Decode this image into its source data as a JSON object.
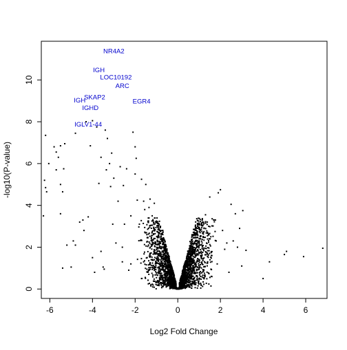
{
  "chart_data": {
    "type": "scatter",
    "title": "",
    "xlabel": "Log2 Fold Change",
    "ylabel": "-log10(P-value)",
    "xlim": [
      -6.4,
      7.0
    ],
    "ylim": [
      -0.45,
      11.85
    ],
    "xticks": [
      -6,
      -4,
      -2,
      0,
      2,
      4,
      6
    ],
    "yticks": [
      0,
      2,
      4,
      6,
      8,
      10
    ],
    "grid": false,
    "legend": "none",
    "point_color": "#000000",
    "label_color": "#0000CD",
    "series": [
      {
        "values": [
          [
            -6.2,
            7.35
          ],
          [
            -6.25,
            5.2
          ],
          [
            -6.2,
            4.85
          ],
          [
            -6.15,
            4.65
          ],
          [
            -6.3,
            3.5
          ],
          [
            -6.05,
            6.0
          ],
          [
            -5.8,
            6.8
          ],
          [
            -5.7,
            6.55
          ],
          [
            -5.6,
            6.3
          ],
          [
            -5.7,
            5.7
          ],
          [
            -5.5,
            6.85
          ],
          [
            -5.35,
            5.75
          ],
          [
            -5.5,
            5.0
          ],
          [
            -5.5,
            3.6
          ],
          [
            -5.4,
            4.65
          ],
          [
            -5.3,
            6.95
          ],
          [
            -5.4,
            1.0
          ],
          [
            -5.2,
            2.1
          ],
          [
            -5.0,
            1.05
          ],
          [
            -4.9,
            2.3
          ],
          [
            -4.8,
            7.45
          ],
          [
            -4.8,
            2.1
          ],
          [
            -4.6,
            3.2
          ],
          [
            -4.45,
            3.3
          ],
          [
            -4.4,
            2.8
          ],
          [
            -4.3,
            8.0
          ],
          [
            -4.2,
            3.45
          ],
          [
            -4.1,
            6.85
          ],
          [
            -4.0,
            8.05
          ],
          [
            -4.0,
            1.5
          ],
          [
            -3.8,
            7.75
          ],
          [
            -3.7,
            5.05
          ],
          [
            -3.6,
            6.3
          ],
          [
            -3.5,
            1.05
          ],
          [
            -3.45,
            0.95
          ],
          [
            -3.4,
            7.6
          ],
          [
            -3.35,
            5.7
          ],
          [
            -3.3,
            7.2
          ],
          [
            -3.2,
            6.0
          ],
          [
            -3.15,
            4.9
          ],
          [
            -3.1,
            6.5
          ],
          [
            -3.0,
            5.3
          ],
          [
            -3.05,
            3.1
          ],
          [
            -2.8,
            4.2
          ],
          [
            -2.7,
            5.85
          ],
          [
            -2.6,
            1.3
          ],
          [
            -2.55,
            4.95
          ],
          [
            -2.5,
            3.1
          ],
          [
            -2.4,
            5.75
          ],
          [
            -2.3,
            0.9
          ],
          [
            -2.2,
            3.5
          ],
          [
            -2.1,
            7.5
          ],
          [
            -2.0,
            6.8
          ],
          [
            -2.0,
            5.5
          ],
          [
            -1.95,
            6.25
          ],
          [
            -1.9,
            4.25
          ],
          [
            -1.8,
            3.1
          ],
          [
            -1.7,
            5.25
          ],
          [
            -1.6,
            4.2
          ],
          [
            -1.55,
            3.8
          ],
          [
            -1.5,
            5.0
          ],
          [
            -1.45,
            2.6
          ],
          [
            -1.35,
            3.9
          ],
          [
            -1.3,
            4.3
          ],
          [
            -1.2,
            3.5
          ],
          [
            -1.1,
            4.1
          ],
          [
            -1.0,
            3.25
          ],
          [
            -0.9,
            3.0
          ],
          [
            -0.7,
            2.8
          ],
          [
            -3.9,
            0.8
          ],
          [
            -3.6,
            1.8
          ],
          [
            -2.9,
            2.2
          ],
          [
            -2.6,
            2.0
          ],
          [
            -2.2,
            1.2
          ],
          [
            -1.7,
            0.5
          ],
          [
            -1.4,
            0.8
          ],
          [
            -1.2,
            2.1
          ],
          [
            -1.1,
            1.4
          ],
          [
            -0.95,
            2.3
          ],
          [
            -0.85,
            1.7
          ],
          [
            -0.75,
            1.1
          ],
          [
            -0.6,
            1.9
          ],
          [
            -0.5,
            1.3
          ],
          [
            -0.45,
            0.9
          ],
          [
            -0.35,
            0.6
          ],
          [
            -0.3,
            0.4
          ],
          [
            -0.2,
            0.25
          ],
          [
            -0.1,
            0.12
          ],
          [
            0.1,
            0.12
          ],
          [
            0.2,
            0.3
          ],
          [
            0.35,
            0.55
          ],
          [
            0.45,
            0.9
          ],
          [
            0.55,
            1.3
          ],
          [
            0.6,
            1.7
          ],
          [
            0.7,
            2.2
          ],
          [
            0.75,
            2.6
          ],
          [
            0.85,
            1.6
          ],
          [
            0.9,
            2.9
          ],
          [
            1.0,
            2.4
          ],
          [
            1.1,
            1.8
          ],
          [
            1.15,
            3.3
          ],
          [
            1.2,
            2.7
          ],
          [
            1.3,
            3.55
          ],
          [
            1.35,
            2.2
          ],
          [
            1.4,
            1.3
          ],
          [
            1.45,
            3.0
          ],
          [
            1.5,
            4.4
          ],
          [
            1.55,
            2.5
          ],
          [
            1.6,
            1.6
          ],
          [
            1.7,
            3.3
          ],
          [
            1.8,
            2.3
          ],
          [
            1.85,
            1.2
          ],
          [
            1.9,
            4.6
          ],
          [
            2.0,
            4.75
          ],
          [
            2.1,
            2.8
          ],
          [
            2.2,
            1.9
          ],
          [
            2.3,
            2.2
          ],
          [
            2.4,
            0.8
          ],
          [
            2.5,
            4.05
          ],
          [
            2.6,
            2.3
          ],
          [
            2.7,
            3.6
          ],
          [
            2.8,
            2.0
          ],
          [
            2.9,
            2.9
          ],
          [
            3.0,
            1.1
          ],
          [
            3.05,
            3.75
          ],
          [
            3.2,
            1.85
          ],
          [
            4.0,
            0.5
          ],
          [
            4.3,
            1.3
          ],
          [
            5.0,
            1.65
          ],
          [
            5.1,
            1.8
          ],
          [
            5.9,
            1.55
          ],
          [
            6.8,
            1.95
          ]
        ]
      }
    ],
    "annotations": [
      {
        "label": "NR4A2",
        "x": -3.0,
        "y": 11.4
      },
      {
        "label": "IGH",
        "x": -3.7,
        "y": 10.5
      },
      {
        "label": "LOC10192",
        "x": -2.9,
        "y": 10.15
      },
      {
        "label": "ARC",
        "x": -2.6,
        "y": 9.75
      },
      {
        "label": "EGR4",
        "x": -1.7,
        "y": 9.0
      },
      {
        "label": "SKAP2",
        "x": -3.9,
        "y": 9.2
      },
      {
        "label": "IGH",
        "x": -4.6,
        "y": 9.05
      },
      {
        "label": "IGHD",
        "x": -4.1,
        "y": 8.7
      },
      {
        "label": "IGLV1-44",
        "x": -4.2,
        "y": 7.9
      }
    ]
  }
}
